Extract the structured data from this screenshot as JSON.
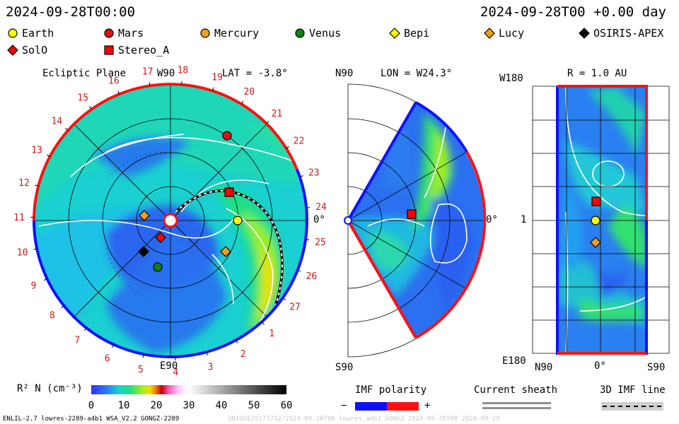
{
  "header": {
    "timestamp_left": "2024-09-28T00:00",
    "timestamp_right": "2024-09-28T00 +0.00 day"
  },
  "legend": [
    {
      "name": "Earth",
      "shape": "circle",
      "color": "#ffff00"
    },
    {
      "name": "Mars",
      "shape": "circle",
      "color": "#e01010"
    },
    {
      "name": "Mercury",
      "shape": "circle",
      "color": "#f0a020"
    },
    {
      "name": "Venus",
      "shape": "circle",
      "color": "#108010"
    },
    {
      "name": "Bepi",
      "shape": "diamond",
      "color": "#ffff00"
    },
    {
      "name": "Lucy",
      "shape": "diamond",
      "color": "#f0a020"
    },
    {
      "name": "OSIRIS-APEX",
      "shape": "diamond",
      "color": "#000000"
    },
    {
      "name": "SolO",
      "shape": "diamond",
      "color": "#ff0000"
    },
    {
      "name": "Stereo_A",
      "shape": "square",
      "color": "#ff0000"
    }
  ],
  "chart_data": [
    {
      "type": "heatmap",
      "title": "Ecliptic Plane",
      "subtitle": "LAT = -3.8°",
      "top_label": "W90",
      "bottom_label": "E90",
      "right_label": "0°",
      "carrington_ticks": [
        "19",
        "20",
        "21",
        "22",
        "23",
        "24",
        "25",
        "26",
        "27",
        "1",
        "2",
        "3",
        "4",
        "5",
        "6",
        "7",
        "8",
        "9",
        "10",
        "11",
        "12",
        "13",
        "14",
        "15",
        "16",
        "17",
        "18"
      ],
      "objects": [
        {
          "name": "Mars",
          "shape": "circle",
          "color": "#e01010"
        },
        {
          "name": "Stereo_A",
          "shape": "square",
          "color": "#ff0000"
        },
        {
          "name": "Earth",
          "shape": "circle",
          "color": "#ffff00"
        },
        {
          "name": "Mercury",
          "shape": "diamond",
          "color": "#f0a020"
        },
        {
          "name": "SolO",
          "shape": "diamond",
          "color": "#ff0000"
        },
        {
          "name": "OSIRIS-APEX",
          "shape": "diamond",
          "color": "#000000"
        },
        {
          "name": "Venus",
          "shape": "circle",
          "color": "#108010"
        },
        {
          "name": "Lucy",
          "shape": "diamond",
          "color": "#f0a020"
        }
      ]
    },
    {
      "type": "heatmap",
      "title": "LON = W24.3°",
      "top_label": "N90",
      "bottom_label": "S90",
      "right_label": "0°",
      "objects": [
        {
          "name": "Stereo_A",
          "shape": "square",
          "color": "#ff0000"
        }
      ]
    },
    {
      "type": "heatmap",
      "title": "R = 1.0 AU",
      "left_top_label": "W180",
      "left_bottom_label": "E180",
      "left_mid_label": "1",
      "x_labels": [
        "N90",
        "0°",
        "S90"
      ],
      "objects": [
        {
          "name": "Stereo_A",
          "shape": "square",
          "color": "#ff0000"
        },
        {
          "name": "Earth",
          "shape": "circle",
          "color": "#ffff00"
        },
        {
          "name": "Lucy",
          "shape": "diamond",
          "color": "#f0a020"
        }
      ]
    }
  ],
  "colorbar": {
    "label": "R² N (cm⁻³)",
    "ticks": [
      "0",
      "10",
      "20",
      "30",
      "40",
      "50",
      "60"
    ],
    "range": [
      0,
      60
    ]
  },
  "imf": {
    "label": "IMF polarity",
    "minus": "−",
    "plus": "+",
    "sheath_label": "Current sheath",
    "line_label": "3D IMF line"
  },
  "footer": {
    "left": "ENLIL-2.7 lowres-2289-a4b1 WSA_V2.2 GONGZ-2289",
    "watermark": "UNIQUE29173732/2024-09-28T00 lowres_a4b1 GONGZ 2024-09-28T00  2024-09-29"
  }
}
